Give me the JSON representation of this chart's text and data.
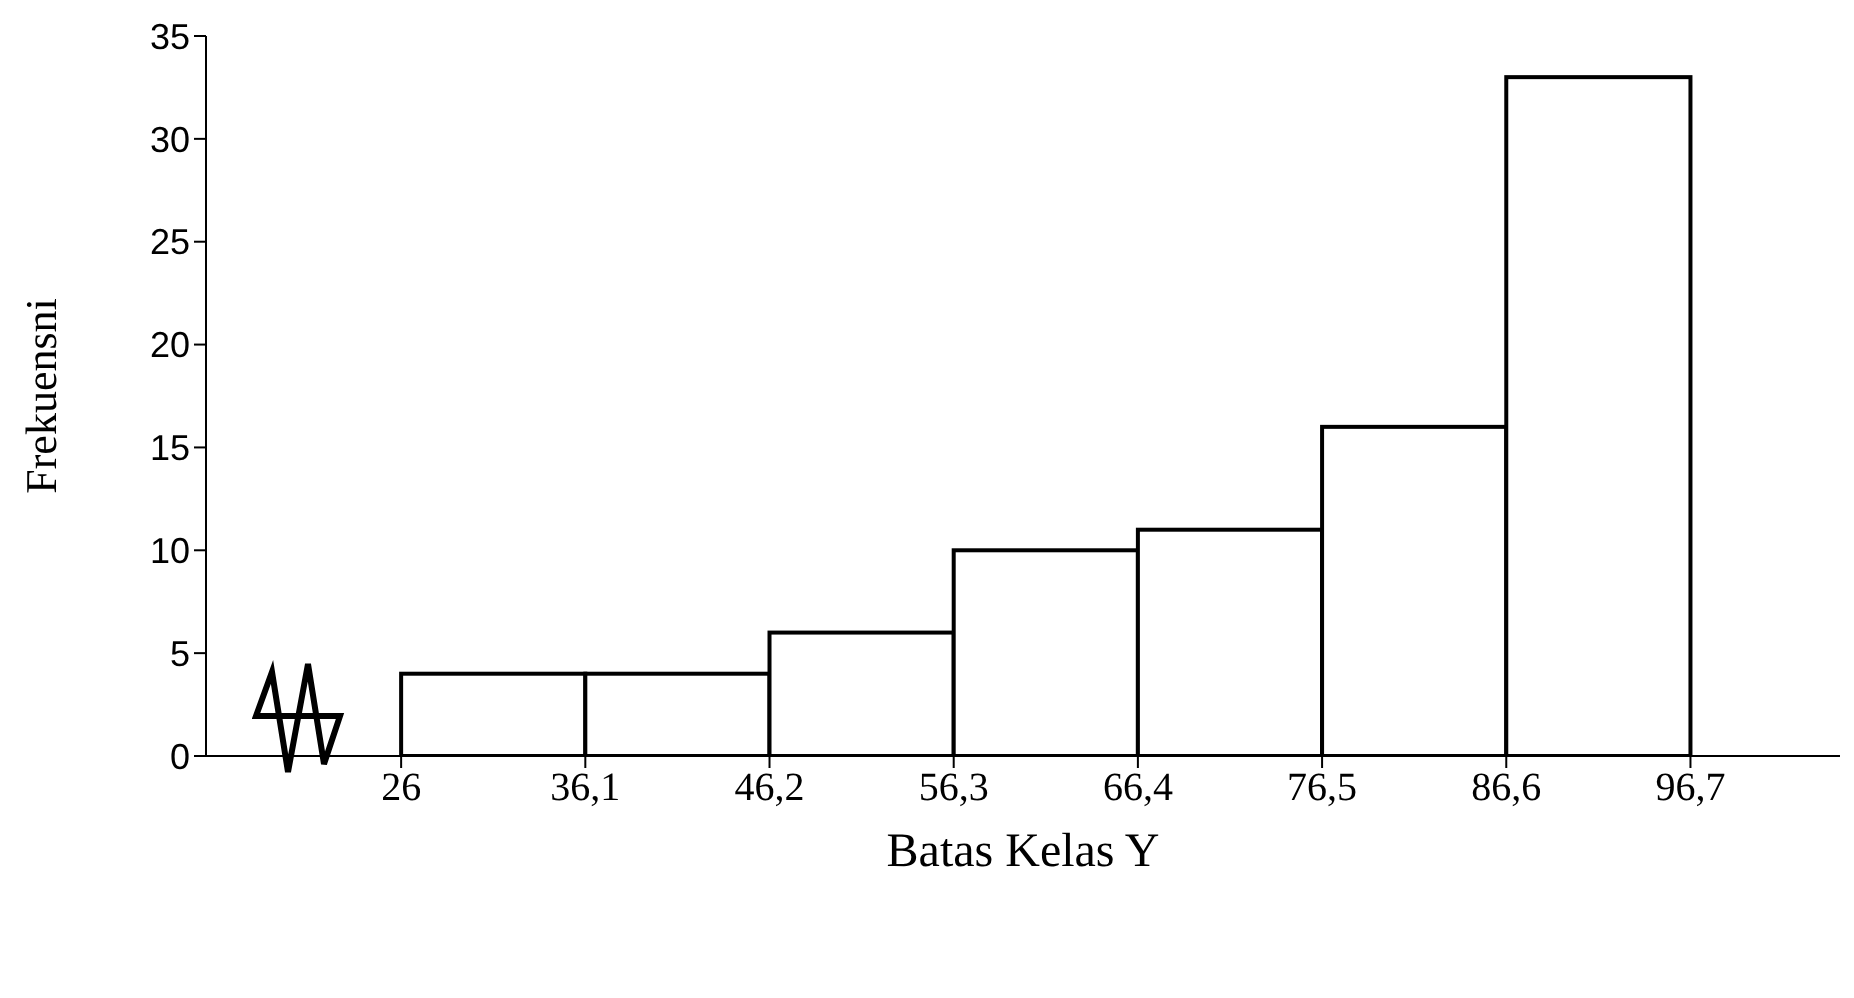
{
  "chart_data": {
    "type": "histogram",
    "xlabel": "Batas Kelas Y",
    "ylabel": "Frekuensni",
    "bins": [
      26,
      36.1,
      46.2,
      56.3,
      66.4,
      76.5,
      86.6,
      96.7
    ],
    "values": [
      4,
      4,
      6,
      10,
      11,
      16,
      33
    ],
    "color": "#ffffff",
    "xlim": [
      15.3,
      104.9
    ],
    "xticks": [
      26,
      {
        "value": 36.1,
        "label": "36,1"
      },
      {
        "value": 46.2,
        "label": "46,2"
      },
      {
        "value": 56.3,
        "label": "56,3"
      },
      {
        "value": 66.4,
        "label": "66,4"
      },
      {
        "value": 76.5,
        "label": "76,5"
      },
      {
        "value": 86.6,
        "label": "86,6"
      },
      {
        "value": 96.7,
        "label": "96,7"
      }
    ],
    "ylim": [
      0,
      35
    ],
    "yticks": [
      0,
      5,
      10,
      15,
      20,
      25,
      30,
      35
    ],
    "grid": false,
    "legend": false
  }
}
